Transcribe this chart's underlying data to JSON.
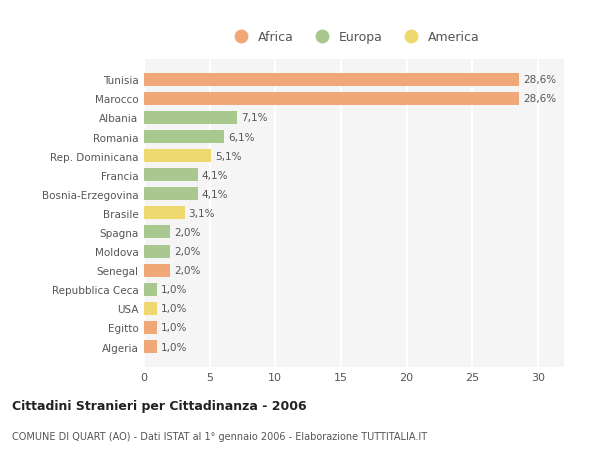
{
  "countries": [
    "Tunisia",
    "Marocco",
    "Albania",
    "Romania",
    "Rep. Dominicana",
    "Francia",
    "Bosnia-Erzegovina",
    "Brasile",
    "Spagna",
    "Moldova",
    "Senegal",
    "Repubblica Ceca",
    "USA",
    "Egitto",
    "Algeria"
  ],
  "values": [
    28.6,
    28.6,
    7.1,
    6.1,
    5.1,
    4.1,
    4.1,
    3.1,
    2.0,
    2.0,
    2.0,
    1.0,
    1.0,
    1.0,
    1.0
  ],
  "labels": [
    "28,6%",
    "28,6%",
    "7,1%",
    "6,1%",
    "5,1%",
    "4,1%",
    "4,1%",
    "3,1%",
    "2,0%",
    "2,0%",
    "2,0%",
    "1,0%",
    "1,0%",
    "1,0%",
    "1,0%"
  ],
  "continent": [
    "Africa",
    "Africa",
    "Europa",
    "Europa",
    "America",
    "Europa",
    "Europa",
    "America",
    "Europa",
    "Europa",
    "Africa",
    "Europa",
    "America",
    "Africa",
    "Africa"
  ],
  "colors": {
    "Africa": "#F0A878",
    "Europa": "#A8C890",
    "America": "#F0D870"
  },
  "legend_labels": [
    "Africa",
    "Europa",
    "America"
  ],
  "legend_colors": [
    "#F0A878",
    "#A8C890",
    "#F0D870"
  ],
  "title": "Cittadini Stranieri per Cittadinanza - 2006",
  "subtitle": "COMUNE DI QUART (AO) - Dati ISTAT al 1° gennaio 2006 - Elaborazione TUTTITALIA.IT",
  "xlim": [
    0,
    32
  ],
  "xticks": [
    0,
    5,
    10,
    15,
    20,
    25,
    30
  ],
  "bg_color": "#ffffff",
  "plot_bg_color": "#f5f5f5",
  "grid_color": "#ffffff"
}
